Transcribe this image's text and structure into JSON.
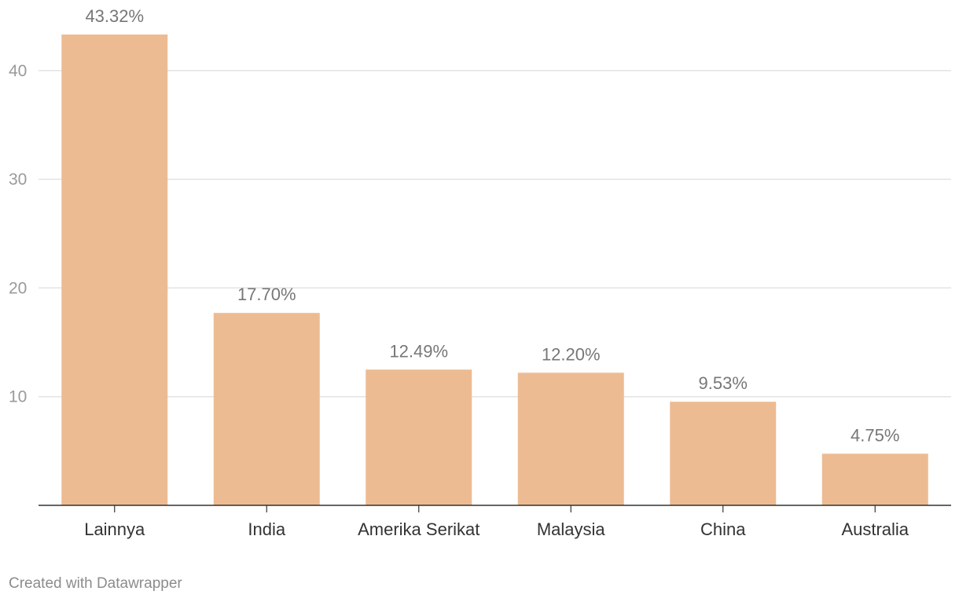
{
  "chart_data": {
    "type": "bar",
    "categories": [
      "Lainnya",
      "India",
      "Amerika Serikat",
      "Malaysia",
      "China",
      "Australia"
    ],
    "values": [
      43.32,
      17.7,
      12.49,
      12.2,
      9.53,
      4.75
    ],
    "data_labels": [
      "43.32%",
      "17.70%",
      "12.49%",
      "12.20%",
      "9.53%",
      "4.75%"
    ],
    "y_ticks": [
      10,
      20,
      30,
      40
    ],
    "ylim": [
      0,
      45
    ],
    "grid": true,
    "bar_color": "#edbb92"
  },
  "footer": {
    "credit": "Created with Datawrapper"
  }
}
